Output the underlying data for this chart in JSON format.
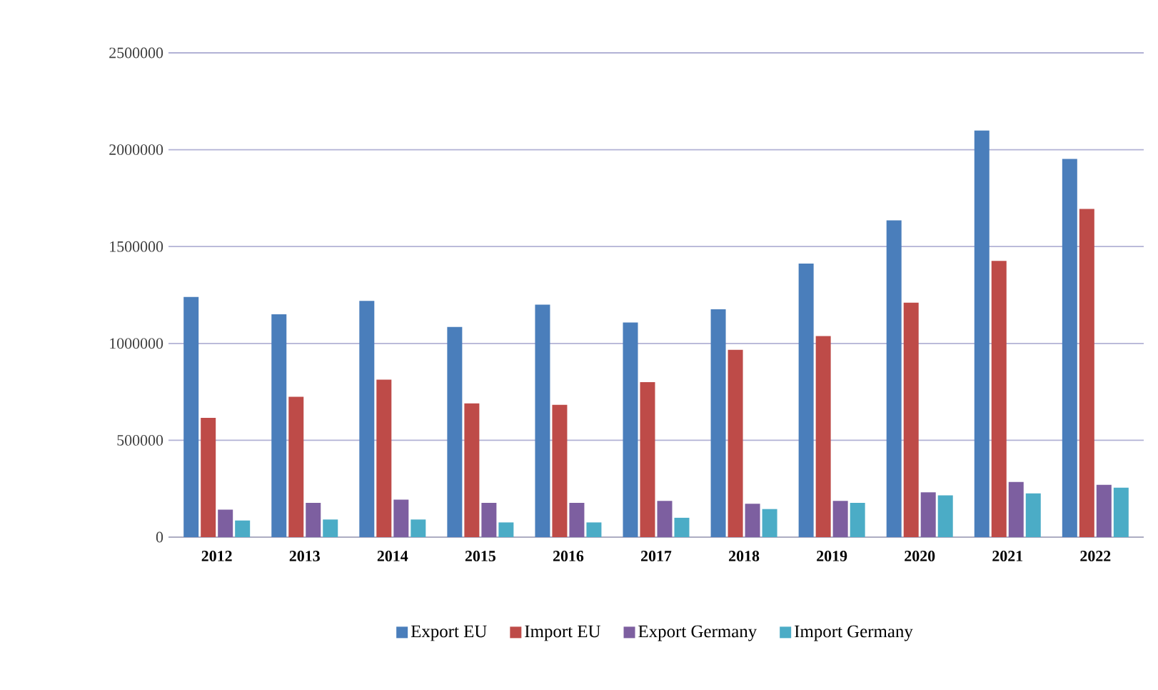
{
  "chart_data": {
    "type": "bar",
    "categories": [
      "2012",
      "2013",
      "2014",
      "2015",
      "2016",
      "2017",
      "2018",
      "2019",
      "2020",
      "2021",
      "2022"
    ],
    "series": [
      {
        "name": "Export EU",
        "color": "#4a7ebb",
        "values": [
          1240000,
          1150000,
          1220000,
          1085000,
          1200000,
          1108000,
          1176000,
          1412000,
          1635000,
          2099000,
          1952000
        ]
      },
      {
        "name": "Import EU",
        "color": "#be4b48",
        "values": [
          616000,
          725000,
          813000,
          690000,
          683000,
          800000,
          967000,
          1038000,
          1210000,
          1426000,
          1694000
        ]
      },
      {
        "name": "Export Germany",
        "color": "#7d5fa0",
        "values": [
          142000,
          177000,
          194000,
          177000,
          177000,
          187000,
          172000,
          187000,
          231000,
          285000,
          270000
        ]
      },
      {
        "name": "Import Germany",
        "color": "#4bacc6",
        "values": [
          86000,
          91000,
          91000,
          76000,
          76000,
          100000,
          145000,
          177000,
          216000,
          226000,
          255000
        ]
      }
    ],
    "ylim": [
      0,
      2500000
    ],
    "yticks": [
      0,
      500000,
      1000000,
      1500000,
      2000000,
      2500000
    ],
    "grid": "y",
    "legend": "bottom"
  }
}
